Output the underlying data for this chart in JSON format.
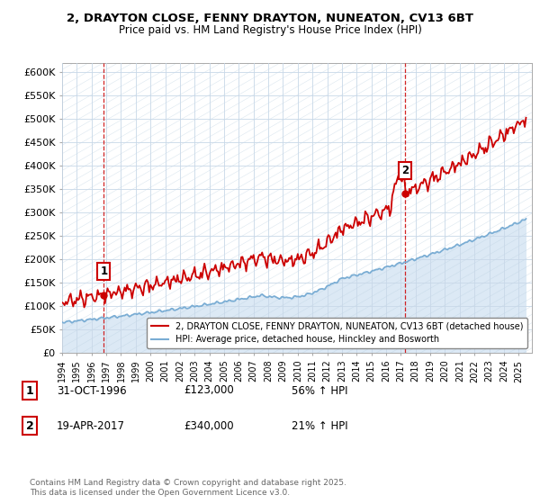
{
  "title_line1": "2, DRAYTON CLOSE, FENNY DRAYTON, NUNEATON, CV13 6BT",
  "title_line2": "Price paid vs. HM Land Registry's House Price Index (HPI)",
  "ylim": [
    0,
    620000
  ],
  "yticks": [
    0,
    50000,
    100000,
    150000,
    200000,
    250000,
    300000,
    350000,
    400000,
    450000,
    500000,
    550000,
    600000
  ],
  "ytick_labels": [
    "£0",
    "£50K",
    "£100K",
    "£150K",
    "£200K",
    "£250K",
    "£300K",
    "£350K",
    "£400K",
    "£450K",
    "£500K",
    "£550K",
    "£600K"
  ],
  "property_color": "#cc0000",
  "hpi_color": "#7aadd4",
  "hpi_fill_color": "#dce9f5",
  "legend_property": "2, DRAYTON CLOSE, FENNY DRAYTON, NUNEATON, CV13 6BT (detached house)",
  "legend_hpi": "HPI: Average price, detached house, Hinckley and Bosworth",
  "sale1_x": 1996.833,
  "sale1_price": 123000,
  "sale1_date": "31-OCT-1996",
  "sale1_label": "56% ↑ HPI",
  "sale2_x": 2017.292,
  "sale2_price": 340000,
  "sale2_date": "19-APR-2017",
  "sale2_label": "21% ↑ HPI",
  "footnote": "Contains HM Land Registry data © Crown copyright and database right 2025.\nThis data is licensed under the Open Government Licence v3.0.",
  "background_color": "#ffffff",
  "plot_bg_color": "#ffffff",
  "grid_color": "#c8d8e8",
  "xlim_start": 1994,
  "xlim_end": 2025.9
}
